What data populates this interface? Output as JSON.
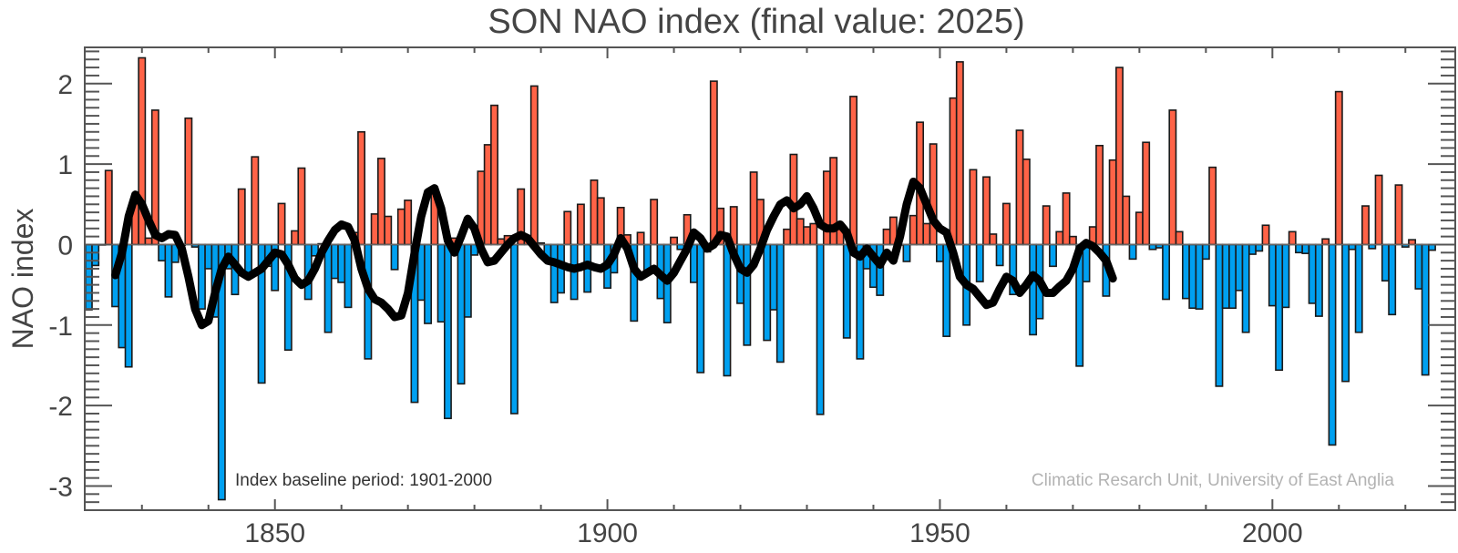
{
  "chart_data": {
    "type": "bar",
    "title": "SON NAO index (final value: 2025)",
    "xlabel": "",
    "ylabel": "NAO index",
    "xlim": [
      1821.4,
      2027.5
    ],
    "ylim": [
      -3.3,
      2.45
    ],
    "x_ticks": [
      1850,
      1900,
      1950,
      2000
    ],
    "x_tick_labels": [
      "1850",
      "1900",
      "1950",
      "2000"
    ],
    "y_ticks": [
      -3,
      -2,
      -1,
      0,
      1,
      2
    ],
    "y_tick_labels": [
      "-3",
      "-2",
      "-1",
      "0",
      "1",
      "2"
    ],
    "grid": false,
    "legend": "none",
    "colors": {
      "positive": "#ff6347",
      "negative": "#00a0f0",
      "bar_edge": "#1a1a1a",
      "smooth_line": "#000000",
      "axis": "#555555"
    },
    "annotations": {
      "baseline": "Index baseline period: 1901-2000",
      "credit": "Climatic Resarch Unit, University of East Anglia"
    },
    "series": [
      {
        "name": "SON NAO index",
        "kind": "bar",
        "start_year": 1822,
        "values": [
          -0.81,
          -0.26,
          0.0,
          0.92,
          -0.77,
          -1.28,
          -1.52,
          0.61,
          2.32,
          0.08,
          1.67,
          -0.2,
          -0.65,
          -0.22,
          -0.01,
          1.57,
          -0.03,
          -0.8,
          -0.3,
          -0.9,
          -3.17,
          -0.3,
          -0.62,
          0.69,
          -0.37,
          1.09,
          -1.72,
          -0.27,
          -0.57,
          0.51,
          -1.31,
          0.17,
          0.95,
          -0.68,
          -0.14,
          0.01,
          -1.09,
          -0.42,
          -0.47,
          -0.78,
          0.15,
          1.4,
          -1.42,
          0.38,
          1.07,
          0.35,
          -0.31,
          0.44,
          0.55,
          -1.96,
          -0.69,
          -0.98,
          0.65,
          -0.96,
          -2.16,
          0.08,
          -1.73,
          -0.9,
          -0.13,
          0.91,
          1.24,
          1.73,
          0.07,
          0.11,
          -2.1,
          0.69,
          0.06,
          1.97,
          0.02,
          -0.19,
          -0.72,
          -0.6,
          0.41,
          -0.68,
          0.5,
          -0.59,
          0.8,
          0.58,
          -0.54,
          -0.35,
          0.46,
          0.12,
          -0.95,
          0.15,
          -0.36,
          0.56,
          -0.67,
          -0.97,
          0.09,
          -0.06,
          0.37,
          -0.47,
          -1.59,
          -0.09,
          2.03,
          0.45,
          -1.63,
          0.47,
          -0.73,
          -1.25,
          0.9,
          0.56,
          -1.19,
          -0.81,
          -1.46,
          0.19,
          1.12,
          0.32,
          0.22,
          0.26,
          -2.11,
          0.91,
          1.08,
          0.19,
          -1.16,
          1.84,
          -1.42,
          -0.3,
          -0.53,
          -0.63,
          0.19,
          0.34,
          0.0,
          -0.21,
          0.36,
          1.52,
          0.26,
          1.25,
          -0.21,
          -1.14,
          1.82,
          2.27,
          -1.0,
          0.93,
          -0.46,
          0.84,
          0.13,
          -0.26,
          0.51,
          -0.62,
          1.42,
          1.06,
          -1.12,
          -0.92,
          0.48,
          -0.27,
          0.16,
          0.64,
          0.1,
          -1.51,
          -0.46,
          0.22,
          1.23,
          -0.64,
          1.05,
          2.2,
          0.6,
          -0.18,
          0.4,
          1.27,
          -0.06,
          -0.04,
          -0.68,
          1.67,
          0.16,
          -0.67,
          -0.79,
          -0.8,
          -0.18,
          0.96,
          -1.76,
          -0.79,
          -0.79,
          -0.57,
          -1.09,
          -0.12,
          -0.08,
          0.24,
          -0.76,
          -1.56,
          -0.78,
          0.16,
          -0.1,
          -0.11,
          -0.73,
          -0.89,
          0.07,
          -2.49,
          1.9,
          -1.7,
          -0.06,
          -1.09,
          0.48,
          -0.05,
          0.86,
          -0.45,
          -0.87,
          0.74,
          -0.03,
          0.06,
          -0.55,
          -1.62,
          -0.07
        ]
      },
      {
        "name": "Smoothed (approx.)",
        "kind": "line",
        "points": [
          [
            1826,
            -0.38
          ],
          [
            1827,
            -0.1
          ],
          [
            1828,
            0.35
          ],
          [
            1829,
            0.62
          ],
          [
            1830,
            0.5
          ],
          [
            1831,
            0.3
          ],
          [
            1832,
            0.12
          ],
          [
            1833,
            0.08
          ],
          [
            1834,
            0.13
          ],
          [
            1835,
            0.12
          ],
          [
            1836,
            -0.05
          ],
          [
            1837,
            -0.4
          ],
          [
            1838,
            -0.8
          ],
          [
            1839,
            -1.0
          ],
          [
            1840,
            -0.95
          ],
          [
            1841,
            -0.6
          ],
          [
            1842,
            -0.3
          ],
          [
            1843,
            -0.15
          ],
          [
            1844,
            -0.25
          ],
          [
            1845,
            -0.35
          ],
          [
            1846,
            -0.4
          ],
          [
            1847,
            -0.35
          ],
          [
            1848,
            -0.3
          ],
          [
            1849,
            -0.2
          ],
          [
            1850,
            -0.1
          ],
          [
            1851,
            -0.12
          ],
          [
            1852,
            -0.25
          ],
          [
            1853,
            -0.42
          ],
          [
            1854,
            -0.5
          ],
          [
            1855,
            -0.45
          ],
          [
            1856,
            -0.3
          ],
          [
            1857,
            -0.1
          ],
          [
            1858,
            0.05
          ],
          [
            1859,
            0.18
          ],
          [
            1860,
            0.25
          ],
          [
            1861,
            0.22
          ],
          [
            1862,
            0.05
          ],
          [
            1863,
            -0.3
          ],
          [
            1864,
            -0.55
          ],
          [
            1865,
            -0.68
          ],
          [
            1866,
            -0.72
          ],
          [
            1867,
            -0.8
          ],
          [
            1868,
            -0.9
          ],
          [
            1869,
            -0.88
          ],
          [
            1870,
            -0.6
          ],
          [
            1871,
            -0.1
          ],
          [
            1872,
            0.35
          ],
          [
            1873,
            0.65
          ],
          [
            1874,
            0.7
          ],
          [
            1875,
            0.45
          ],
          [
            1876,
            0.05
          ],
          [
            1877,
            -0.1
          ],
          [
            1878,
            0.1
          ],
          [
            1879,
            0.32
          ],
          [
            1880,
            0.2
          ],
          [
            1881,
            -0.05
          ],
          [
            1882,
            -0.22
          ],
          [
            1883,
            -0.2
          ],
          [
            1884,
            -0.1
          ],
          [
            1885,
            0.0
          ],
          [
            1886,
            0.08
          ],
          [
            1887,
            0.12
          ],
          [
            1888,
            0.08
          ],
          [
            1889,
            -0.02
          ],
          [
            1890,
            -0.12
          ],
          [
            1891,
            -0.2
          ],
          [
            1892,
            -0.22
          ],
          [
            1893,
            -0.25
          ],
          [
            1894,
            -0.28
          ],
          [
            1895,
            -0.3
          ],
          [
            1896,
            -0.28
          ],
          [
            1897,
            -0.25
          ],
          [
            1898,
            -0.28
          ],
          [
            1899,
            -0.3
          ],
          [
            1900,
            -0.25
          ],
          [
            1901,
            -0.12
          ],
          [
            1902,
            0.08
          ],
          [
            1903,
            -0.05
          ],
          [
            1904,
            -0.3
          ],
          [
            1905,
            -0.4
          ],
          [
            1906,
            -0.35
          ],
          [
            1907,
            -0.3
          ],
          [
            1908,
            -0.38
          ],
          [
            1909,
            -0.45
          ],
          [
            1910,
            -0.35
          ],
          [
            1911,
            -0.2
          ],
          [
            1912,
            -0.05
          ],
          [
            1913,
            0.15
          ],
          [
            1914,
            0.08
          ],
          [
            1915,
            -0.05
          ],
          [
            1916,
            0.0
          ],
          [
            1917,
            0.12
          ],
          [
            1918,
            0.1
          ],
          [
            1919,
            -0.12
          ],
          [
            1920,
            -0.3
          ],
          [
            1921,
            -0.35
          ],
          [
            1922,
            -0.25
          ],
          [
            1923,
            -0.05
          ],
          [
            1924,
            0.18
          ],
          [
            1925,
            0.35
          ],
          [
            1926,
            0.5
          ],
          [
            1927,
            0.55
          ],
          [
            1928,
            0.45
          ],
          [
            1929,
            0.5
          ],
          [
            1930,
            0.6
          ],
          [
            1931,
            0.45
          ],
          [
            1932,
            0.25
          ],
          [
            1933,
            0.2
          ],
          [
            1934,
            0.2
          ],
          [
            1935,
            0.25
          ],
          [
            1936,
            0.15
          ],
          [
            1937,
            -0.1
          ],
          [
            1938,
            -0.15
          ],
          [
            1939,
            -0.05
          ],
          [
            1940,
            -0.15
          ],
          [
            1941,
            -0.25
          ],
          [
            1942,
            -0.1
          ],
          [
            1943,
            -0.2
          ],
          [
            1944,
            0.1
          ],
          [
            1945,
            0.5
          ],
          [
            1946,
            0.78
          ],
          [
            1947,
            0.7
          ],
          [
            1948,
            0.5
          ],
          [
            1949,
            0.3
          ],
          [
            1950,
            0.2
          ],
          [
            1951,
            0.15
          ],
          [
            1952,
            -0.1
          ],
          [
            1953,
            -0.4
          ],
          [
            1954,
            -0.5
          ],
          [
            1955,
            -0.55
          ],
          [
            1956,
            -0.65
          ],
          [
            1957,
            -0.75
          ],
          [
            1958,
            -0.72
          ],
          [
            1959,
            -0.55
          ],
          [
            1960,
            -0.4
          ],
          [
            1961,
            -0.45
          ],
          [
            1962,
            -0.6
          ],
          [
            1963,
            -0.5
          ],
          [
            1964,
            -0.38
          ],
          [
            1965,
            -0.45
          ],
          [
            1966,
            -0.6
          ],
          [
            1967,
            -0.6
          ],
          [
            1968,
            -0.52
          ],
          [
            1969,
            -0.45
          ],
          [
            1970,
            -0.3
          ],
          [
            1971,
            -0.05
          ],
          [
            1972,
            0.02
          ],
          [
            1973,
            -0.02
          ],
          [
            1974,
            -0.1
          ],
          [
            1975,
            -0.2
          ],
          [
            1976,
            -0.42
          ]
        ]
      }
    ]
  }
}
